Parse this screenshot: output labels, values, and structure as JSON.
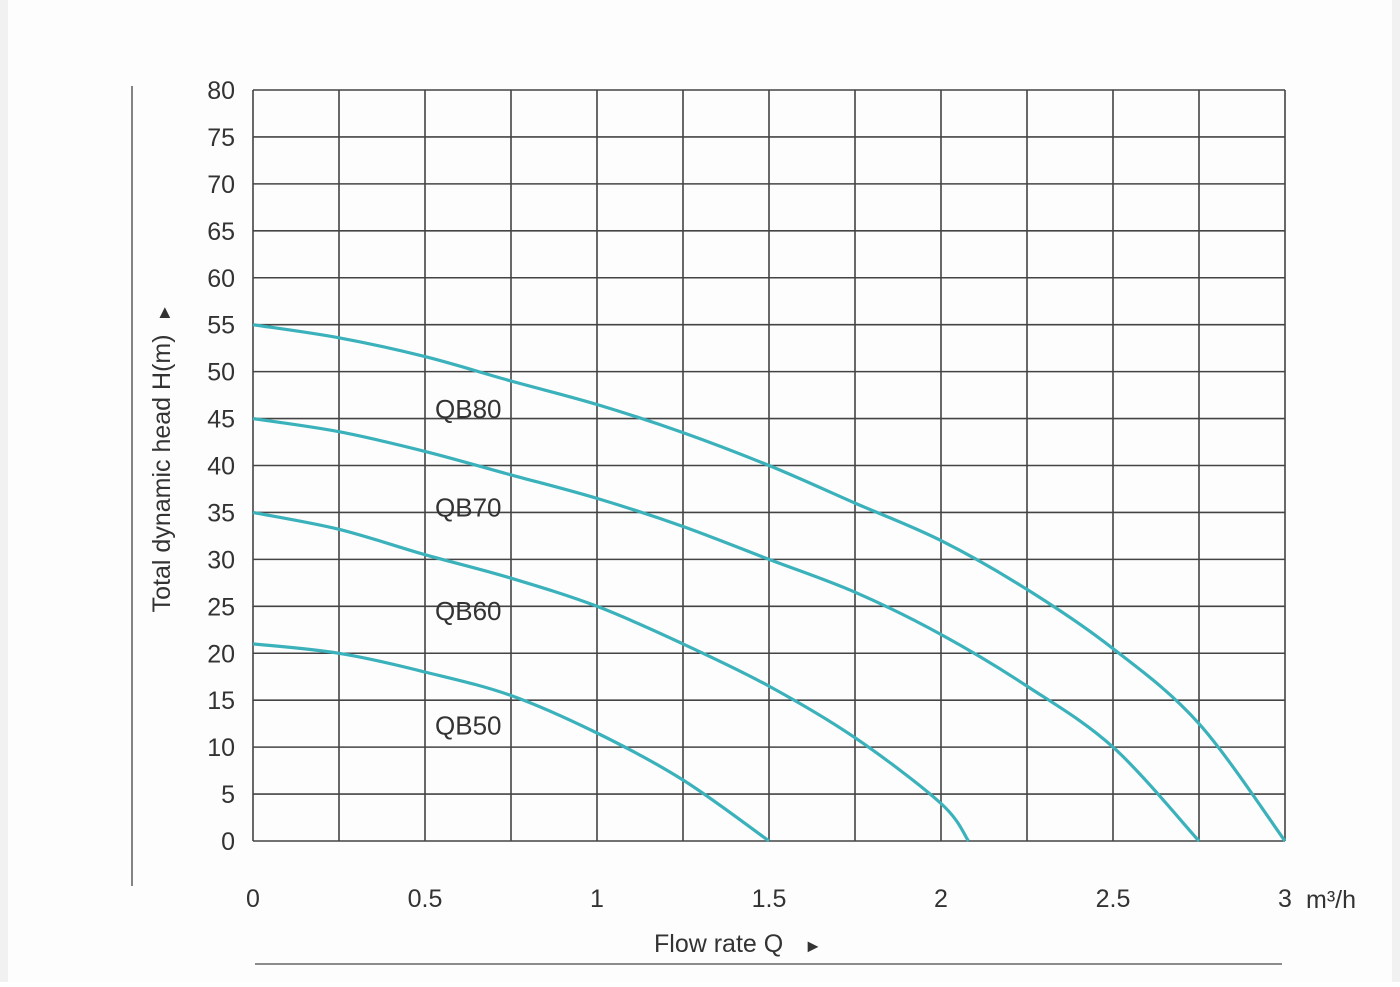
{
  "chart_data": {
    "type": "line",
    "xlabel": "Flow rate Q",
    "xlabel_arrow": "►",
    "ylabel": "Total dynamic head H(m)",
    "ylabel_arrow": "►",
    "x_unit": "m³/h",
    "xlim": [
      0,
      3
    ],
    "ylim": [
      0,
      80
    ],
    "x_ticks": [
      "0",
      "0.5",
      "1",
      "1.5",
      "2",
      "2.5",
      "3"
    ],
    "x_tick_values": [
      0,
      0.5,
      1,
      1.5,
      2,
      2.5,
      3
    ],
    "y_ticks": [
      "80",
      "75",
      "70",
      "65",
      "60",
      "55",
      "50",
      "45",
      "40",
      "35",
      "30",
      "25",
      "20",
      "15",
      "10",
      "5",
      "0"
    ],
    "y_tick_values": [
      80,
      75,
      70,
      65,
      60,
      55,
      50,
      45,
      40,
      35,
      30,
      25,
      20,
      15,
      10,
      5,
      0
    ],
    "grid": true,
    "x_grid_step": 0.25,
    "y_grid_step": 5,
    "curve_color": "#3bb2bb",
    "series": [
      {
        "name": "QB80",
        "label_at": [
          0.66,
          46
        ],
        "x": [
          0,
          0.25,
          0.5,
          0.75,
          1.0,
          1.25,
          1.5,
          1.75,
          2.0,
          2.25,
          2.5,
          2.75,
          3.0
        ],
        "y": [
          55,
          53.6,
          51.6,
          49,
          46.5,
          43.5,
          40,
          36,
          32,
          26.8,
          20.5,
          12.5,
          0
        ]
      },
      {
        "name": "QB70",
        "label_at": [
          0.66,
          35.5
        ],
        "x": [
          0,
          0.25,
          0.5,
          0.75,
          1.0,
          1.25,
          1.5,
          1.75,
          2.0,
          2.25,
          2.5,
          2.75
        ],
        "y": [
          45,
          43.6,
          41.5,
          39,
          36.5,
          33.5,
          30,
          26.5,
          22,
          16.5,
          10,
          0
        ]
      },
      {
        "name": "QB60",
        "label_at": [
          0.66,
          24.5
        ],
        "x": [
          0,
          0.25,
          0.5,
          0.75,
          1.0,
          1.25,
          1.5,
          1.75,
          2.0,
          2.08
        ],
        "y": [
          35,
          33.2,
          30.5,
          28,
          25,
          21,
          16.5,
          11,
          4,
          0
        ]
      },
      {
        "name": "QB50",
        "label_at": [
          0.66,
          12.3
        ],
        "x": [
          0,
          0.25,
          0.5,
          0.75,
          1.0,
          1.25,
          1.5
        ],
        "y": [
          21,
          20,
          18,
          15.5,
          11.5,
          6.5,
          0
        ]
      }
    ]
  }
}
